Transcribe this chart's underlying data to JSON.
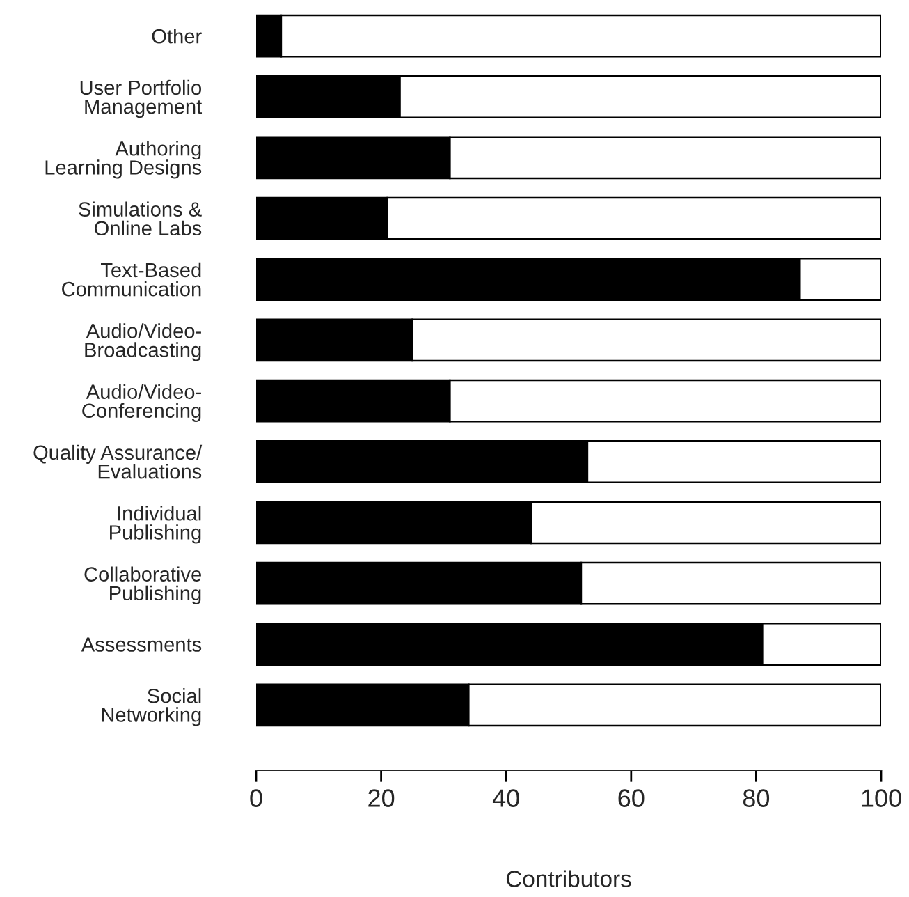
{
  "chart_data": {
    "type": "bar",
    "orientation": "horizontal",
    "stacked": true,
    "xlabel": "Contributors",
    "categories": [
      "Other",
      "User Portfolio\nManagement",
      "Authoring\nLearning Designs",
      "Simulations &\nOnline Labs",
      "Text-Based\nCommunication",
      "Audio/Video-\nBroadcasting",
      "Audio/Video-\nConferencing",
      "Quality Assurance/\nEvaluations",
      "Individual\nPublishing",
      "Collaborative\nPublishing",
      "Assessments",
      "Social\nNetworking"
    ],
    "series": [
      {
        "color": "#000000",
        "values": [
          4,
          23,
          31,
          21,
          87,
          25,
          31,
          53,
          44,
          52,
          81,
          34
        ]
      },
      {
        "color": "#ffffff",
        "values": [
          96,
          77,
          69,
          79,
          13,
          75,
          69,
          47,
          56,
          48,
          19,
          66
        ]
      }
    ],
    "xlim": [
      0,
      100
    ],
    "xticks": [
      0,
      20,
      40,
      60,
      80,
      100
    ],
    "grid": false,
    "legend": false
  }
}
